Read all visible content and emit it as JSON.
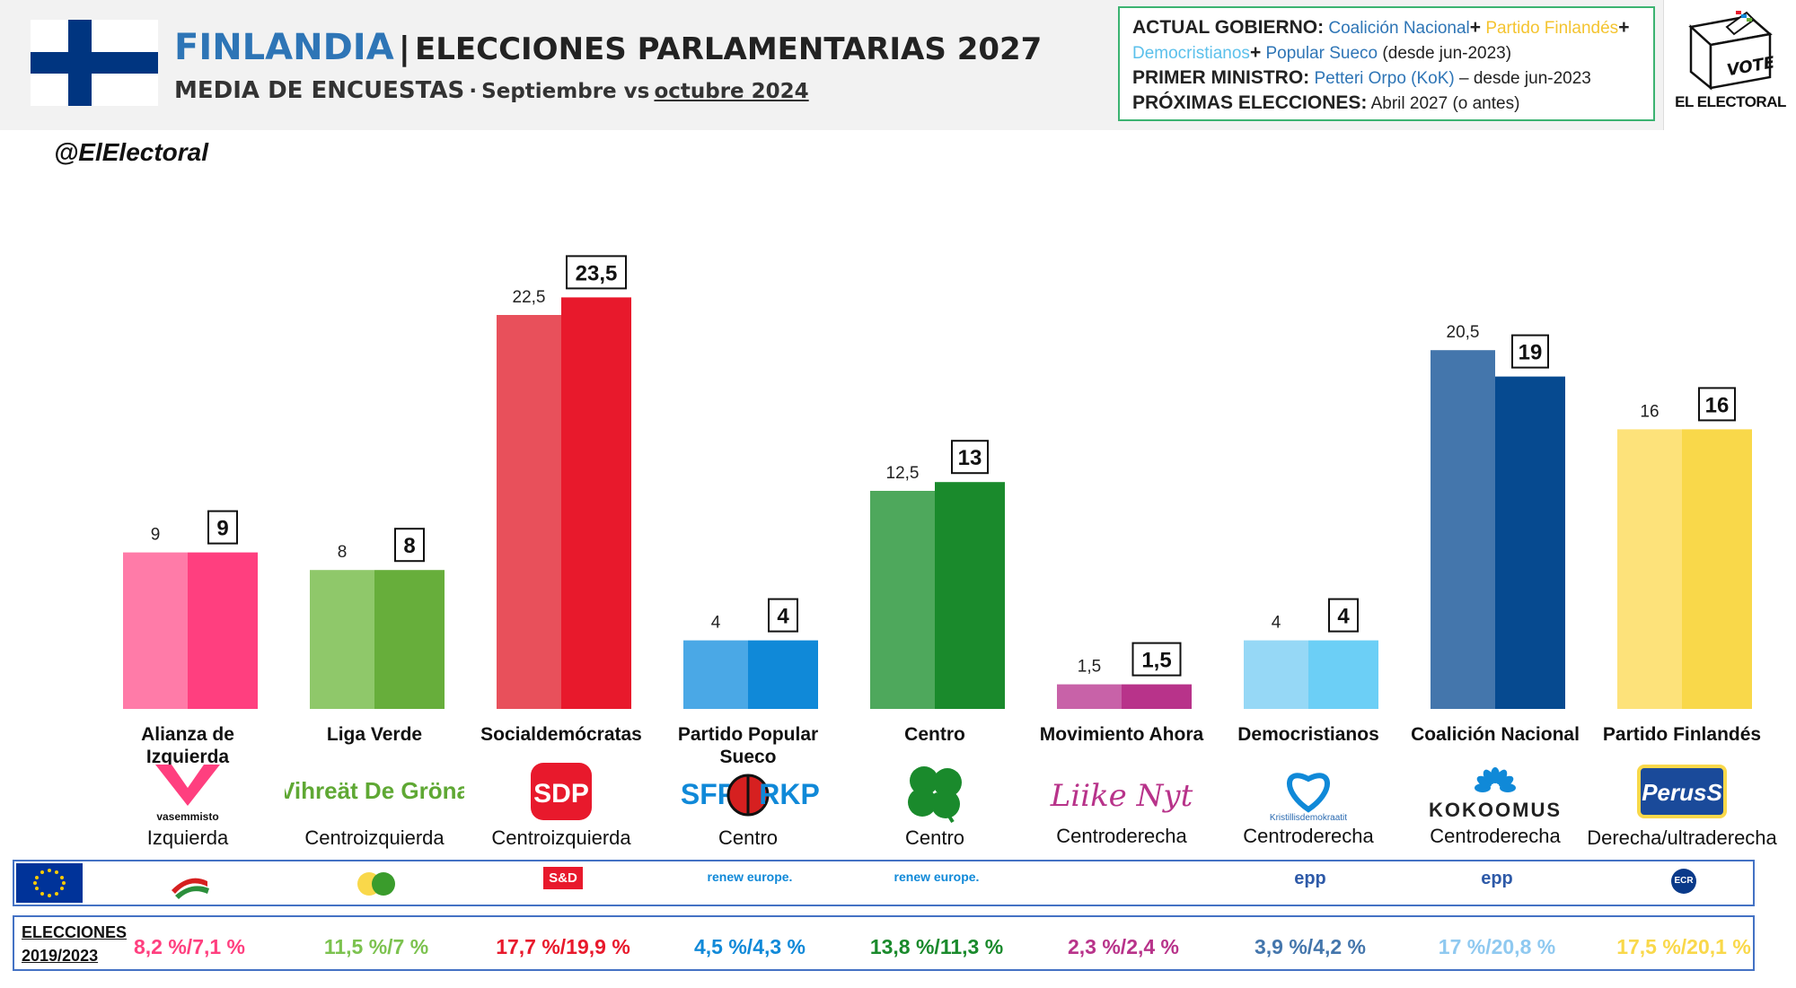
{
  "header": {
    "country": "FINLANDIA",
    "separator": "|",
    "election": "ELECCIONES PARLAMENTARIAS 2027",
    "subtitle_main": "MEDIA DE ENCUESTAS",
    "subtitle_dot": "·",
    "subtitle_from": "Septiembre vs",
    "subtitle_to": "octubre 2024"
  },
  "government": {
    "label_gov": "ACTUAL GOBIERNO:",
    "parties": [
      {
        "name": "Coalición Nacional",
        "color": "#2e75b6"
      },
      {
        "name": "Partido Finlandés",
        "color": "#f4c430"
      },
      {
        "name": "Democristianos",
        "color": "#5bc0eb"
      },
      {
        "name": "Popular Sueco",
        "color": "#2e75b6"
      }
    ],
    "plus": "+",
    "since": "(desde jun-2023)",
    "label_pm": "PRIMER MINISTRO:",
    "pm": "Petteri Orpo (KoK)",
    "pm_since": "– desde jun-2023",
    "label_next": "PRÓXIMAS ELECCIONES:",
    "next": "Abril 2027 (o antes)"
  },
  "brand": {
    "vote_text": "VOTE",
    "name": "EL ELECTORAL",
    "handle": "@ElElectoral"
  },
  "chart_data": {
    "type": "bar",
    "categories": [
      "Alianza de Izquierda",
      "Liga Verde",
      "Socialdemócratas",
      "Partido Popular Sueco",
      "Centro",
      "Movimiento Ahora",
      "Democristianos",
      "Coalición Nacional",
      "Partido Finlandés"
    ],
    "series": [
      {
        "values": [
          9,
          8,
          22.5,
          4,
          12.5,
          1.5,
          4,
          20.5,
          16
        ]
      },
      {
        "values": [
          9,
          8,
          23.5,
          4,
          13,
          1.5,
          4,
          19,
          16
        ]
      }
    ],
    "value_labels_prev": [
      "9",
      "8",
      "22,5",
      "4",
      "12,5",
      "1,5",
      "4",
      "20,5",
      "16"
    ],
    "value_labels_curr": [
      "9",
      "8",
      "23,5",
      "4",
      "13",
      "1,5",
      "4",
      "19",
      "16"
    ],
    "colors_prev": [
      "#ff7ba8",
      "#8fc86a",
      "#e8505b",
      "#4aa8e6",
      "#4ea85c",
      "#c862a8",
      "#96d8f6",
      "#4476ac",
      "#fde27a"
    ],
    "colors_curr": [
      "#ff3f7f",
      "#67ae3b",
      "#e8192c",
      "#1089d8",
      "#1a8a2c",
      "#b8338a",
      "#6ccff6",
      "#064a90",
      "#f9d84a"
    ],
    "ylim": [
      0,
      24
    ],
    "grid": false,
    "legend": "none"
  },
  "parties": [
    {
      "ideology": "Izquierda",
      "logo_text": "vasemmisto",
      "logo_color": "#ff3f7f",
      "icon": "v-heart-icon",
      "euro_group": "left-icon",
      "result": "8,2 %/7,1 %",
      "result_color": "#ff3f7f"
    },
    {
      "ideology": "Centroizquierda",
      "logo_text": "Vihreät De Gröna",
      "logo_color": "#5fa834",
      "icon": "",
      "euro_group": "greens-icon",
      "result": "11,5 %/7 %",
      "result_color": "#7cc24f"
    },
    {
      "ideology": "Centroizquierda",
      "logo_text": "SDP",
      "logo_color": "#e8192c",
      "icon": "",
      "euro_group": "S&D",
      "result": "17,7 %/19,9 %",
      "result_color": "#e8192c"
    },
    {
      "ideology": "Centro",
      "logo_text": "SFP",
      "logo_text2": "RKP",
      "logo_color": "#1089d8",
      "icon": "ladybug-icon",
      "euro_group": "renew europe.",
      "result": "4,5 %/4,3 %",
      "result_color": "#1089d8"
    },
    {
      "ideology": "Centro",
      "logo_text": "",
      "logo_color": "#1a8a2c",
      "icon": "clover-icon",
      "euro_group": "renew europe.",
      "result": "13,8 %/11,3 %",
      "result_color": "#1a8a2c"
    },
    {
      "ideology": "Centroderecha",
      "logo_text": "Liike Nyt",
      "logo_color": "#b8338a",
      "icon": "",
      "euro_group": "",
      "result": "2,3 %/2,4 %",
      "result_color": "#b8338a"
    },
    {
      "ideology": "Centroderecha",
      "logo_text": "Kristillisdemokraatit",
      "logo_color": "#2a6ab0",
      "icon": "kd-heart-icon",
      "euro_group": "epp",
      "result": "3,9 %/4,2 %",
      "result_color": "#4476ac"
    },
    {
      "ideology": "Centroderecha",
      "logo_text": "KOKOOMUS",
      "logo_color": "#222222",
      "icon": "kokoomus-flower-icon",
      "euro_group": "epp",
      "result": "17 %/20,8 %",
      "result_color": "#8fc9f0"
    },
    {
      "ideology": "Derecha/ultraderecha",
      "logo_text": "PerusS",
      "logo_color": "#1a4a9a",
      "icon": "",
      "euro_group": "ECR",
      "result": "17,5 %/20,1 %",
      "result_color": "#f9d84a"
    }
  ],
  "results_label": {
    "line1": "ELECCIONES",
    "line2": "2019/2023"
  }
}
